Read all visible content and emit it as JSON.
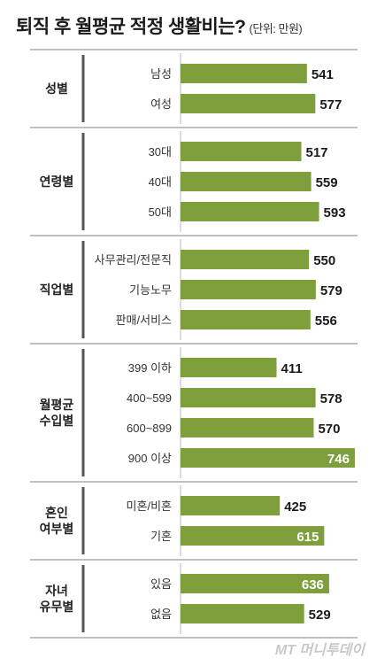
{
  "title": "퇴직 후 월평균 적정 생활비는?",
  "unit": "(단위: 만원)",
  "logo": "MT 머니투데이",
  "colors": {
    "bar": "#7f9e3c",
    "divider": "#999999",
    "background": "#ffffff"
  },
  "chart_data": {
    "type": "bar",
    "orientation": "horizontal",
    "title": "퇴직 후 월평균 적정 생활비는?",
    "unit": "(단위: 만원)",
    "xlim": [
      0,
      750
    ],
    "groups": [
      {
        "label": [
          "성별"
        ],
        "items": [
          {
            "category": "남성",
            "value": 541
          },
          {
            "category": "여성",
            "value": 577
          }
        ]
      },
      {
        "label": [
          "연령별"
        ],
        "items": [
          {
            "category": "30대",
            "value": 517
          },
          {
            "category": "40대",
            "value": 559
          },
          {
            "category": "50대",
            "value": 593
          }
        ]
      },
      {
        "label": [
          "직업별"
        ],
        "items": [
          {
            "category": "사무관리/전문직",
            "value": 550
          },
          {
            "category": "기능노무",
            "value": 579
          },
          {
            "category": "판매/서비스",
            "value": 556
          }
        ]
      },
      {
        "label": [
          "월평균",
          "수입별"
        ],
        "items": [
          {
            "category": "399 이하",
            "value": 411
          },
          {
            "category": "400~599",
            "value": 578
          },
          {
            "category": "600~899",
            "value": 570
          },
          {
            "category": "900 이상",
            "value": 746
          }
        ]
      },
      {
        "label": [
          "혼인",
          "여부별"
        ],
        "items": [
          {
            "category": "미혼/비혼",
            "value": 425
          },
          {
            "category": "기혼",
            "value": 615
          }
        ]
      },
      {
        "label": [
          "자녀",
          "유무별"
        ],
        "items": [
          {
            "category": "있음",
            "value": 636
          },
          {
            "category": "없음",
            "value": 529
          }
        ]
      }
    ]
  }
}
